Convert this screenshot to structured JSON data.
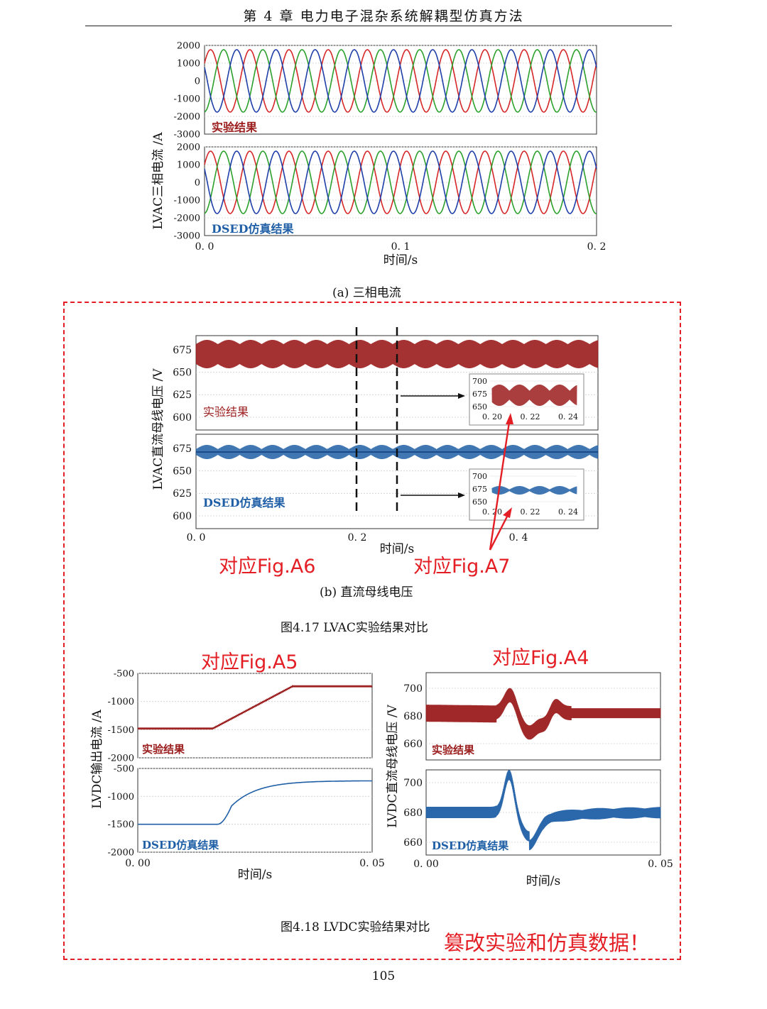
{
  "header": {
    "title": "第 4 章    电力电子混杂系统解耦型仿真方法"
  },
  "fig_a": {
    "caption": "(a)  三相电流",
    "ylabel": "LVAC三相电流 /A",
    "xlabel": "时间/s",
    "top_label": "实验结果",
    "bottom_label": "DSED仿真结果",
    "ytick_labels": [
      "2000",
      "1000",
      "0",
      "-1000",
      "-2000",
      "-3000"
    ],
    "xtick_labels": [
      "0. 0",
      "0. 1",
      "0. 2"
    ]
  },
  "fig_b": {
    "caption": "(b)  直流母线电压",
    "ylabel": "LVAC直流母线电压 /V",
    "xlabel": "时间/s",
    "top_label": "实验结果",
    "bottom_label": "DSED仿真结果",
    "ytick_labels": [
      "675",
      "650",
      "625",
      "600"
    ],
    "xtick_labels": [
      "0. 0",
      "0. 2",
      "0. 4"
    ],
    "inset_ytick_labels": [
      "700",
      "675",
      "650"
    ],
    "inset_xtick_labels": [
      "0. 20",
      "0. 22",
      "0. 24"
    ]
  },
  "fig417_caption": "图4.17    LVAC实验结果对比",
  "fig_c": {
    "ylabel": "LVDC输出电流 /A",
    "xlabel": "时间/s",
    "top_label": "实验结果",
    "bottom_label": "DSED仿真结果",
    "ytick_labels": [
      "-500",
      "-1000",
      "-1500",
      "-2000"
    ],
    "xtick_labels": [
      "0. 00",
      "0. 05"
    ]
  },
  "fig_d": {
    "ylabel": "LVDC直流母线电压 /V",
    "xlabel": "时间/s",
    "top_label": "实验结果",
    "bottom_label": "DSED仿真结果",
    "ytick_labels": [
      "700",
      "680",
      "660"
    ],
    "xtick_labels": [
      "0. 00",
      "0. 05"
    ]
  },
  "fig418_caption": "图4.18    LVDC实验结果对比",
  "annotations": {
    "a6": "对应Fig.A6",
    "a7": "对应Fig.A7",
    "a5": "对应Fig.A5",
    "a4": "对应Fig.A4",
    "tamper": "篡改实验和仿真数据！"
  },
  "page_number": "105",
  "colors": {
    "annotation": "#e31e24",
    "experiment": "#9b1c1c",
    "simulation": "#1f5fa6",
    "phase_a": "#d62728",
    "phase_b": "#2ca02c",
    "phase_c": "#1f3fa8"
  }
}
